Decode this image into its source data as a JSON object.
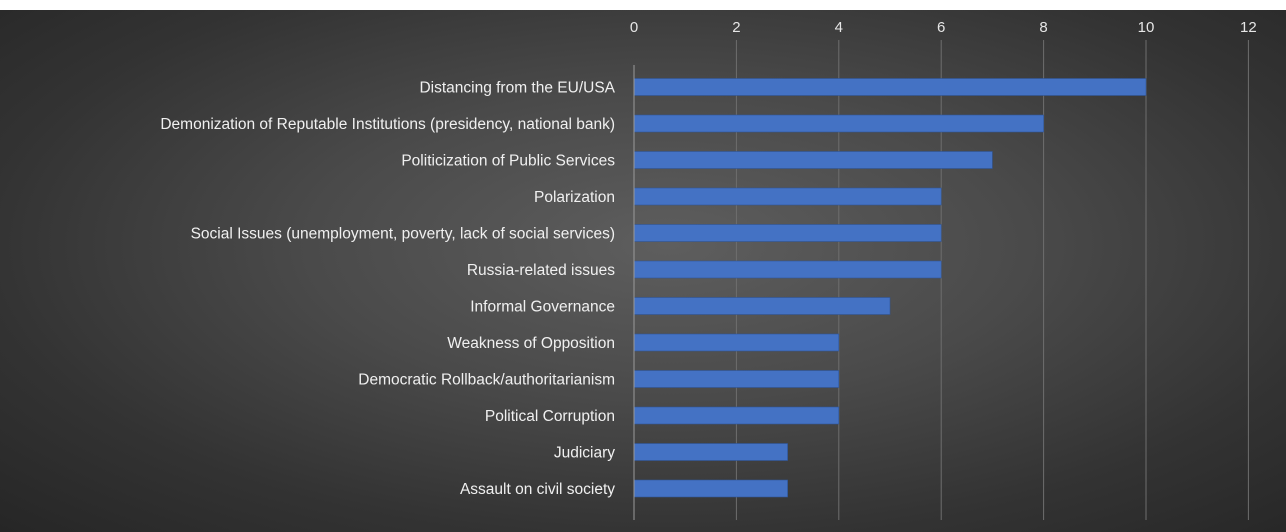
{
  "chart_data": {
    "type": "bar",
    "orientation": "horizontal",
    "title": "",
    "xlabel": "",
    "ylabel": "",
    "xlim": [
      0,
      12
    ],
    "x_ticks": [
      0,
      2,
      4,
      6,
      8,
      10,
      12
    ],
    "x_axis_position": "top",
    "grid": true,
    "legend": "none",
    "bar_color": "#4472C4",
    "background_color": "#404040",
    "categories": [
      "Distancing from the EU/USA",
      "Demonization of Reputable Institutions (presidency, national bank)",
      "Politicization of Public Services",
      "Polarization",
      "Social Issues (unemployment, poverty, lack of social services)",
      "Russia-related issues",
      "Informal Governance",
      "Weakness of Opposition",
      "Democratic Rollback/authoritarianism",
      "Political Corruption",
      "Judiciary",
      "Assault on civil society"
    ],
    "values": [
      10,
      8,
      7,
      6,
      6,
      6,
      5,
      4,
      4,
      4,
      3,
      3
    ]
  }
}
